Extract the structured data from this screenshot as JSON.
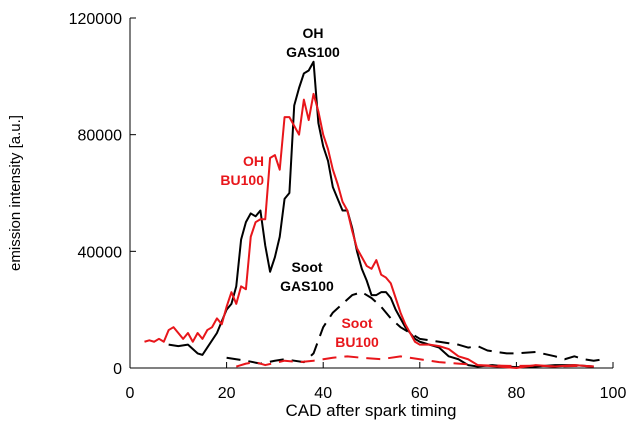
{
  "chart_data": {
    "type": "line",
    "x_label": "CAD after spark timing",
    "y_label": "emission intensity [a.u.]",
    "xlim": [
      0,
      100
    ],
    "xticks": [
      0,
      20,
      40,
      60,
      80,
      100
    ],
    "ylim": [
      0,
      120000
    ],
    "yticks": [
      0,
      40000,
      80000,
      120000
    ],
    "series": [
      {
        "label": [
          "OH",
          "GAS100"
        ],
        "color": "#000000",
        "style": "solid",
        "x": [
          8,
          10,
          12,
          14,
          15,
          16,
          18,
          20,
          21,
          22,
          23,
          24,
          25,
          26,
          27,
          28,
          29,
          30,
          31,
          32,
          33,
          34,
          35,
          36,
          37,
          38,
          39,
          40,
          41,
          42,
          43,
          44,
          45,
          46,
          47,
          48,
          49,
          50,
          51,
          52,
          53,
          54,
          55,
          56,
          57,
          58,
          59,
          60,
          62,
          64,
          66,
          68,
          70,
          72,
          75,
          78,
          80,
          84,
          88,
          92,
          96
        ],
        "values": [
          8000,
          7500,
          8000,
          5000,
          4500,
          7000,
          12000,
          20000,
          22000,
          28000,
          44000,
          50000,
          53000,
          52000,
          54000,
          42000,
          33000,
          38000,
          45000,
          58000,
          60000,
          90000,
          96000,
          101000,
          102000,
          105000,
          84000,
          76000,
          71000,
          62000,
          58000,
          54000,
          54000,
          48000,
          40000,
          34000,
          30000,
          25000,
          25000,
          26000,
          26000,
          24000,
          20000,
          17000,
          14000,
          12000,
          10000,
          9000,
          8000,
          7000,
          4000,
          3000,
          1000,
          500,
          1000,
          500,
          300,
          500,
          1000,
          1000,
          500
        ]
      },
      {
        "label": [
          "OH",
          "BU100"
        ],
        "color": "#e8161b",
        "style": "solid",
        "x": [
          3,
          4,
          5,
          6,
          7,
          8,
          9,
          10,
          11,
          12,
          13,
          14,
          15,
          16,
          17,
          18,
          19,
          20,
          21,
          22,
          23,
          24,
          25,
          26,
          27,
          28,
          29,
          30,
          31,
          32,
          33,
          34,
          35,
          36,
          37,
          38,
          39,
          40,
          41,
          42,
          43,
          44,
          45,
          46,
          47,
          48,
          49,
          50,
          51,
          52,
          53,
          54,
          55,
          56,
          57,
          58,
          59,
          60,
          62,
          64,
          66,
          68,
          70,
          72,
          76,
          80,
          84,
          88,
          92,
          96
        ],
        "values": [
          9000,
          9500,
          9000,
          10000,
          9000,
          13000,
          14000,
          12000,
          10000,
          12000,
          9000,
          12000,
          10000,
          13000,
          14000,
          17000,
          15000,
          21000,
          26000,
          22000,
          28000,
          27000,
          45000,
          50000,
          51000,
          51000,
          72000,
          73000,
          68000,
          86000,
          86000,
          83000,
          80000,
          92000,
          85000,
          94000,
          88000,
          80000,
          75000,
          68000,
          63000,
          57000,
          54000,
          47000,
          41000,
          38000,
          35000,
          34000,
          37000,
          32000,
          31000,
          29000,
          24000,
          19000,
          15000,
          12000,
          9000,
          8000,
          8000,
          7500,
          6500,
          4000,
          3000,
          1000,
          500,
          0,
          1000,
          500,
          1000,
          500
        ]
      },
      {
        "label": [
          "Soot",
          "GAS100"
        ],
        "color": "#000000",
        "style": "dashed",
        "x": [
          20,
          22,
          24,
          27,
          30,
          32,
          36,
          38,
          40,
          42,
          44,
          46,
          48,
          50,
          52,
          54,
          56,
          58,
          60,
          62,
          64,
          66,
          68,
          70,
          72,
          74,
          76,
          78,
          80,
          84,
          88,
          90,
          92,
          94,
          96,
          98
        ],
        "values": [
          3500,
          3000,
          2500,
          1500,
          2500,
          3000,
          2000,
          5000,
          14000,
          19000,
          22000,
          25000,
          26000,
          24000,
          21000,
          17000,
          14000,
          12000,
          10000,
          9500,
          9000,
          8500,
          8000,
          7000,
          7500,
          6000,
          5500,
          5000,
          5000,
          5500,
          4000,
          3000,
          4000,
          3000,
          2500,
          3000
        ]
      },
      {
        "label": [
          "Soot",
          "BU100"
        ],
        "color": "#e8161b",
        "style": "dashed",
        "x": [
          22,
          24,
          26,
          28,
          32,
          35,
          38,
          42,
          45,
          48,
          52,
          56,
          60,
          64,
          68,
          72,
          76,
          80,
          84,
          88,
          92,
          96
        ],
        "values": [
          500,
          1500,
          2000,
          1000,
          2500,
          2000,
          2500,
          3500,
          4000,
          3500,
          3000,
          4000,
          3000,
          2000,
          1500,
          1000,
          800,
          700,
          800,
          500,
          700,
          500
        ]
      }
    ]
  }
}
